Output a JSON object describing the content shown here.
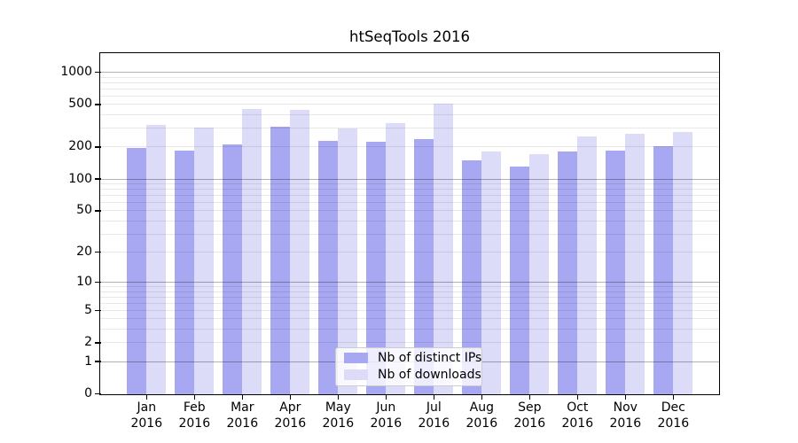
{
  "title": "htSeqTools 2016",
  "colors": {
    "distinct_ips": "#a7a7f2",
    "downloads": "#dcdcf8",
    "grid_minor": "rgba(0,0,0,0.09)",
    "grid_major": "rgba(0,0,0,0.30)",
    "axis": "#000000",
    "background": "#ffffff"
  },
  "legend": {
    "items": [
      {
        "label": "Nb of distinct IPs",
        "series_key": "distinct_ips"
      },
      {
        "label": "Nb of downloads",
        "series_key": "downloads"
      }
    ]
  },
  "y_axis": {
    "tick_labels": [
      "1000",
      "500",
      "200",
      "100",
      "50",
      "20",
      "10",
      "5",
      "2",
      "1",
      "0"
    ],
    "tick_values": [
      1000,
      500,
      200,
      100,
      50,
      20,
      10,
      5,
      2,
      1,
      0
    ]
  },
  "x_axis": {
    "months": [
      "Jan",
      "Feb",
      "Mar",
      "Apr",
      "May",
      "Jun",
      "Jul",
      "Aug",
      "Sep",
      "Oct",
      "Nov",
      "Dec"
    ],
    "year": "2016"
  },
  "chart_data": {
    "type": "bar",
    "title": "htSeqTools 2016",
    "y_scale": "log10(value+1)",
    "categories": [
      "Jan 2016",
      "Feb 2016",
      "Mar 2016",
      "Apr 2016",
      "May 2016",
      "Jun 2016",
      "Jul 2016",
      "Aug 2016",
      "Sep 2016",
      "Oct 2016",
      "Nov 2016",
      "Dec 2016"
    ],
    "series": [
      {
        "name": "Nb of distinct IPs",
        "color": "#a7a7f2",
        "values": [
          198,
          185,
          212,
          310,
          230,
          225,
          240,
          150,
          132,
          184,
          187,
          206
        ]
      },
      {
        "name": "Nb of downloads",
        "color": "#dcdcf8",
        "values": [
          325,
          305,
          460,
          445,
          300,
          340,
          515,
          184,
          174,
          252,
          270,
          280
        ]
      }
    ],
    "ylim": [
      0,
      1500
    ],
    "y_ticks": [
      0,
      1,
      2,
      5,
      10,
      20,
      50,
      100,
      200,
      500,
      1000
    ],
    "grid": "on",
    "legend_position": "lower center"
  }
}
